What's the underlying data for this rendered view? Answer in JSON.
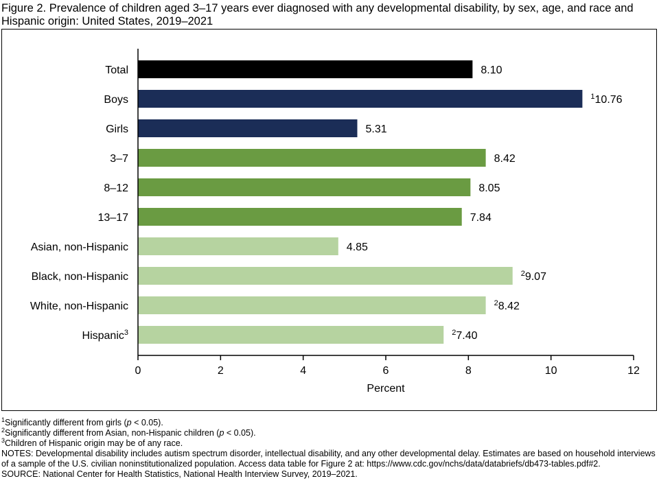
{
  "title": "Figure 2. Prevalence of children aged 3–17 years ever diagnosed with any developmental disability, by sex, age, and race and Hispanic origin: United States, 2019–2021",
  "chart_data": {
    "type": "bar",
    "orientation": "horizontal",
    "categories": [
      "Total",
      "Boys",
      "Girls",
      "3–7",
      "8–12",
      "13–17",
      "Asian, non-Hispanic",
      "Black, non-Hispanic",
      "White, non-Hispanic",
      "Hispanic"
    ],
    "category_superscripts": [
      "",
      "",
      "",
      "",
      "",
      "",
      "",
      "",
      "",
      "3"
    ],
    "values": [
      8.1,
      10.76,
      5.31,
      8.42,
      8.05,
      7.84,
      4.85,
      9.07,
      8.42,
      7.4
    ],
    "value_labels": [
      "8.10",
      "10.76",
      "5.31",
      "8.42",
      "8.05",
      "7.84",
      "4.85",
      "9.07",
      "8.42",
      "7.40"
    ],
    "value_superscripts": [
      "",
      "1",
      "",
      "",
      "",
      "",
      "",
      "2",
      "2",
      "2"
    ],
    "colors": [
      "#000000",
      "#1b2d57",
      "#1b2d57",
      "#6a9b42",
      "#6a9b42",
      "#6a9b42",
      "#b6d3a0",
      "#b6d3a0",
      "#b6d3a0",
      "#b6d3a0"
    ],
    "xlabel": "Percent",
    "xlim": [
      0,
      12
    ],
    "xticks": [
      0,
      2,
      4,
      6,
      8,
      10,
      12
    ],
    "grid": false
  },
  "footnotes": {
    "fn1_sup": "1",
    "fn1_text": "Significantly different from girls (",
    "fn1_p": "p",
    "fn1_end": " < 0.05).",
    "fn2_sup": "2",
    "fn2_text": "Significantly different from Asian, non-Hispanic children (",
    "fn2_p": "p",
    "fn2_end": " < 0.05).",
    "fn3_sup": "3",
    "fn3_text": "Children of Hispanic origin may be of any race.",
    "notes": "NOTES: Developmental disability includes autism spectrum disorder, intellectual disability, and any other developmental delay. Estimates are based on household interviews of a sample of the U.S. civilian noninstitutionalized population. Access data table for Figure 2 at: https://www.cdc.gov/nchs/data/databriefs/db473-tables.pdf#2.",
    "source": "SOURCE: National Center for Health Statistics, National Health Interview Survey, 2019–2021."
  }
}
